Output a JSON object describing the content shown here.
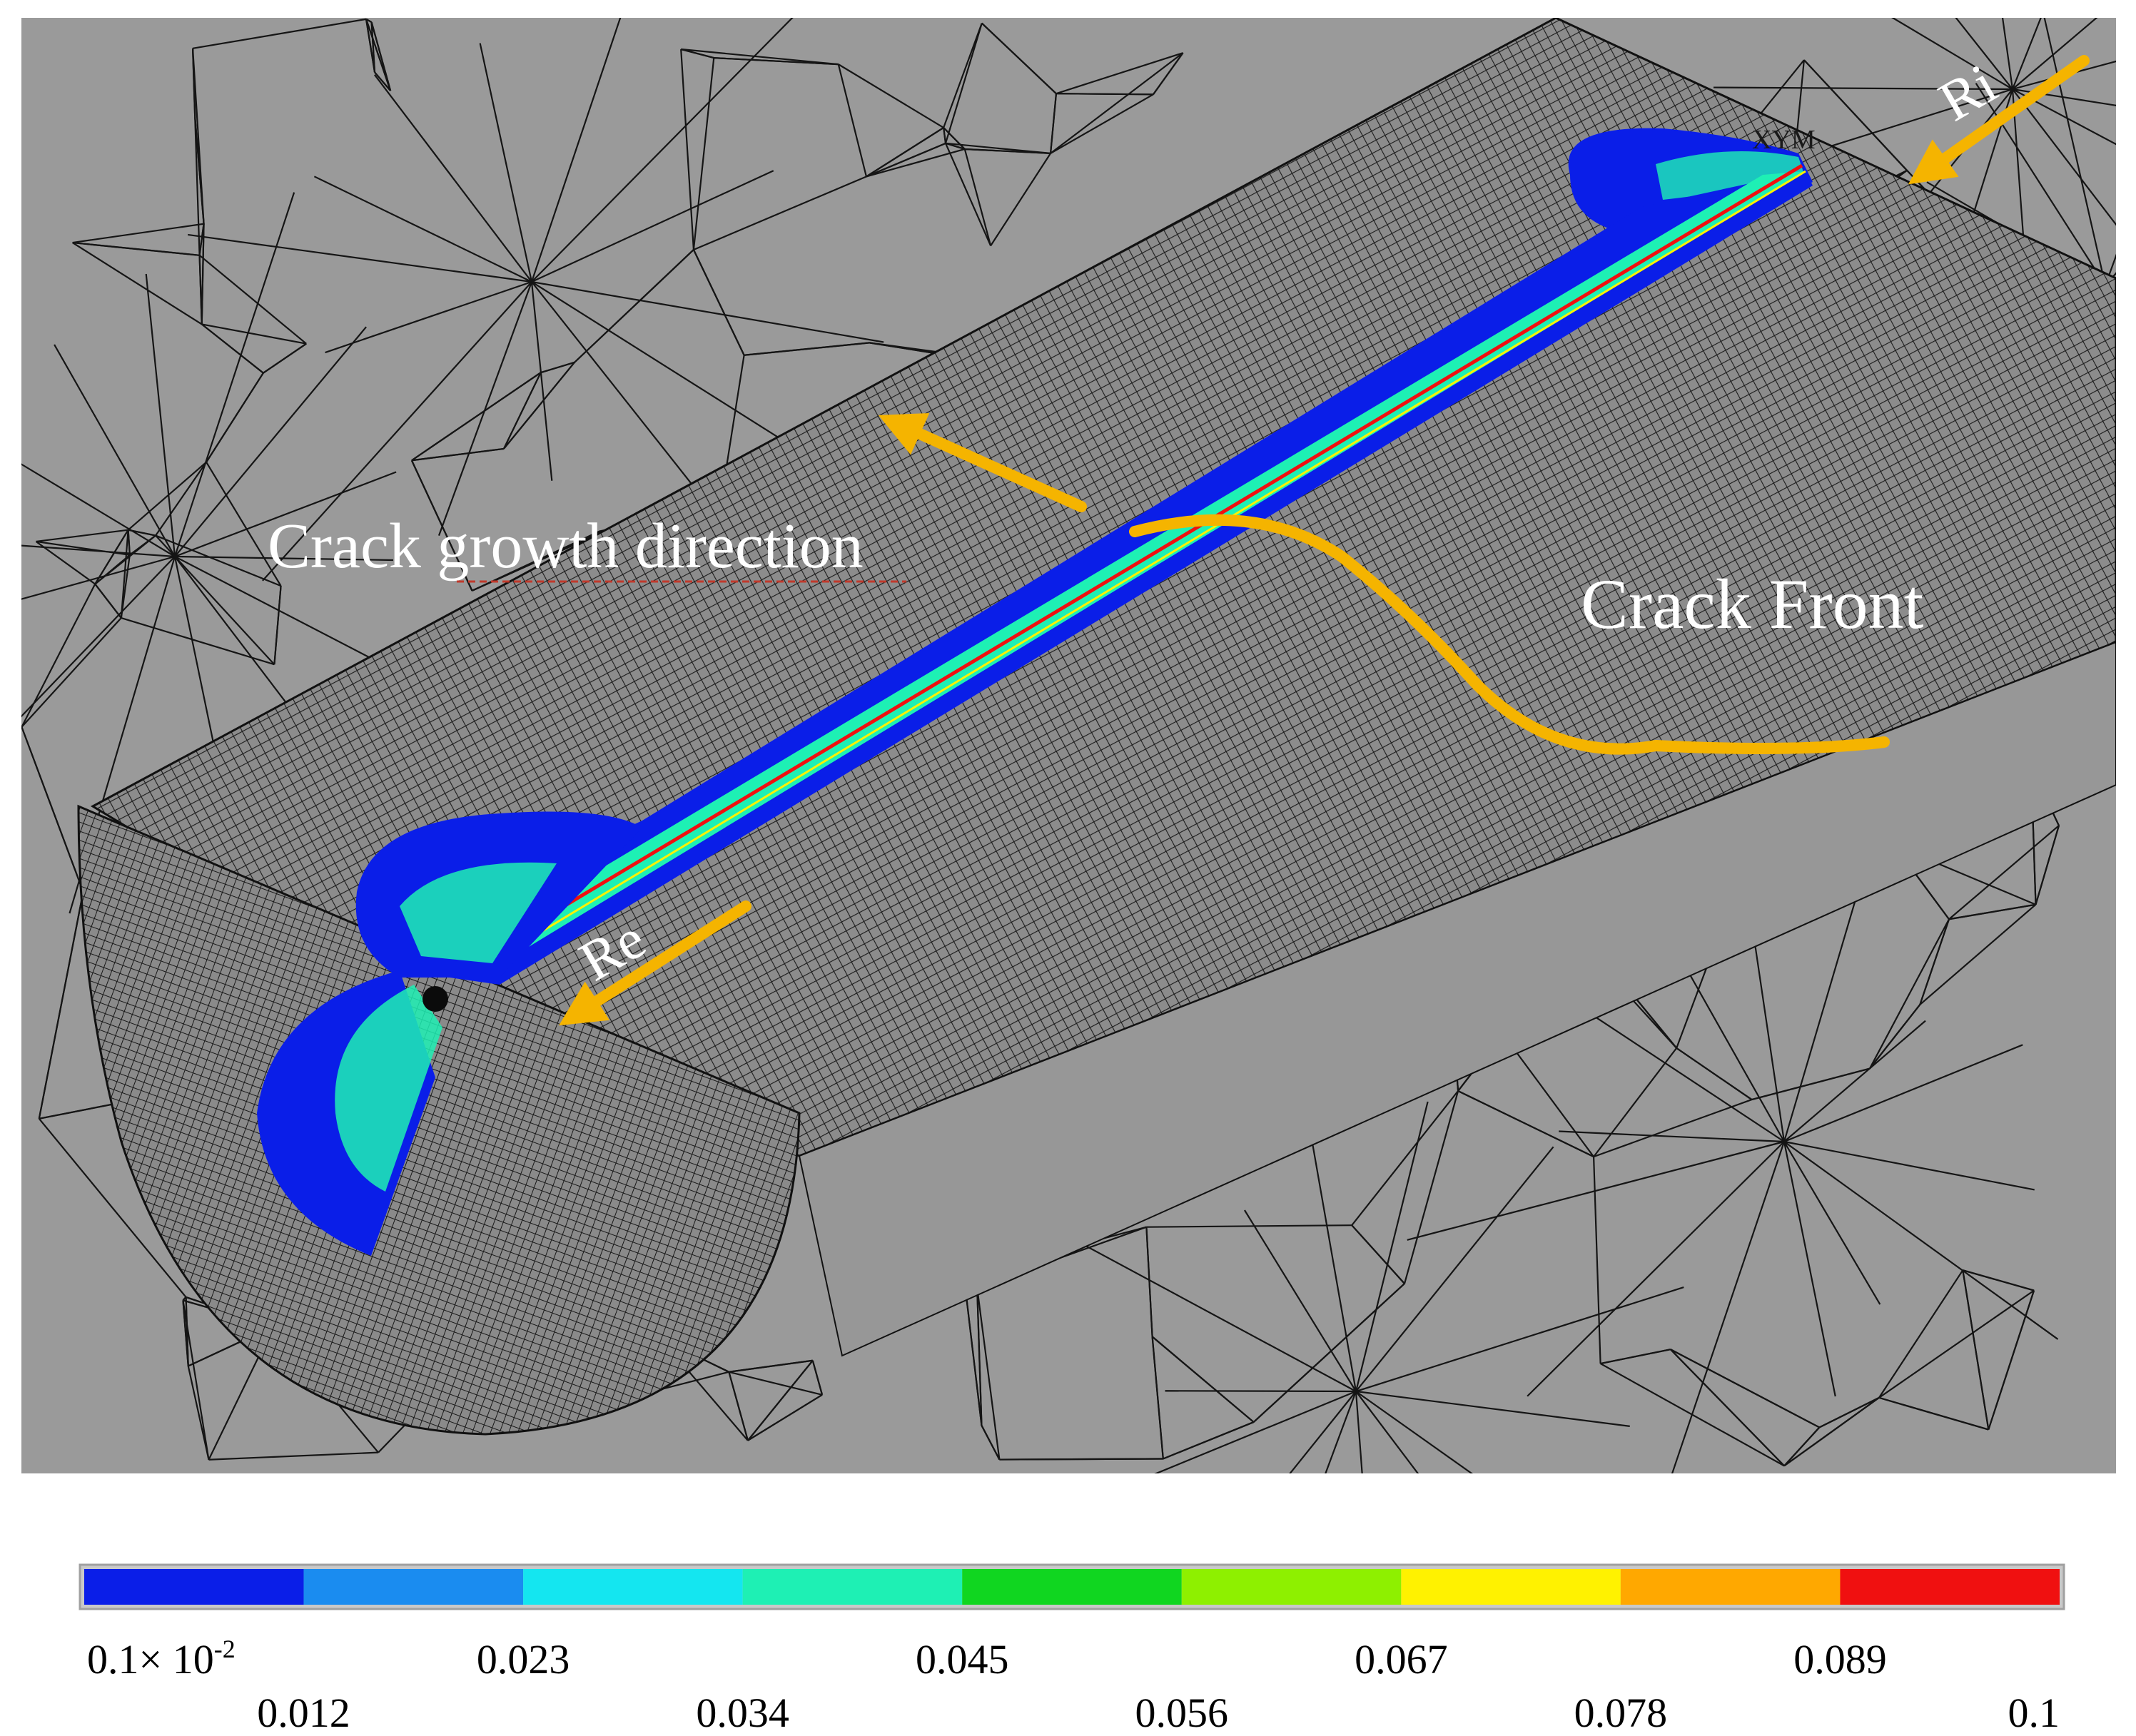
{
  "annotations": {
    "crack_growth_direction": "Crack growth direction",
    "crack_front": "Crack Front",
    "ri": "Ri",
    "re": "Re",
    "triad": "XYM"
  },
  "colors": {
    "background": "#9a9a9a",
    "mesh_line": "#111111",
    "arrow": "#f5b400",
    "white_text": "#ffffff"
  },
  "legend": {
    "bins": [
      {
        "color": "#0a1ee8"
      },
      {
        "color": "#1a8cf0"
      },
      {
        "color": "#14e6f0"
      },
      {
        "color": "#1ef0b4"
      },
      {
        "color": "#10d620"
      },
      {
        "color": "#8ef000"
      },
      {
        "color": "#fff200"
      },
      {
        "color": "#ffa800"
      },
      {
        "color": "#f01010"
      }
    ],
    "ticks_top": [
      {
        "base": "0.1× 10",
        "sup": "-2"
      },
      {
        "base": "0.023"
      },
      {
        "base": "0.045"
      },
      {
        "base": "0.067"
      },
      {
        "base": "0.089"
      }
    ],
    "ticks_bottom": [
      "0.012",
      "0.034",
      "0.056",
      "0.078",
      "0.1"
    ]
  }
}
